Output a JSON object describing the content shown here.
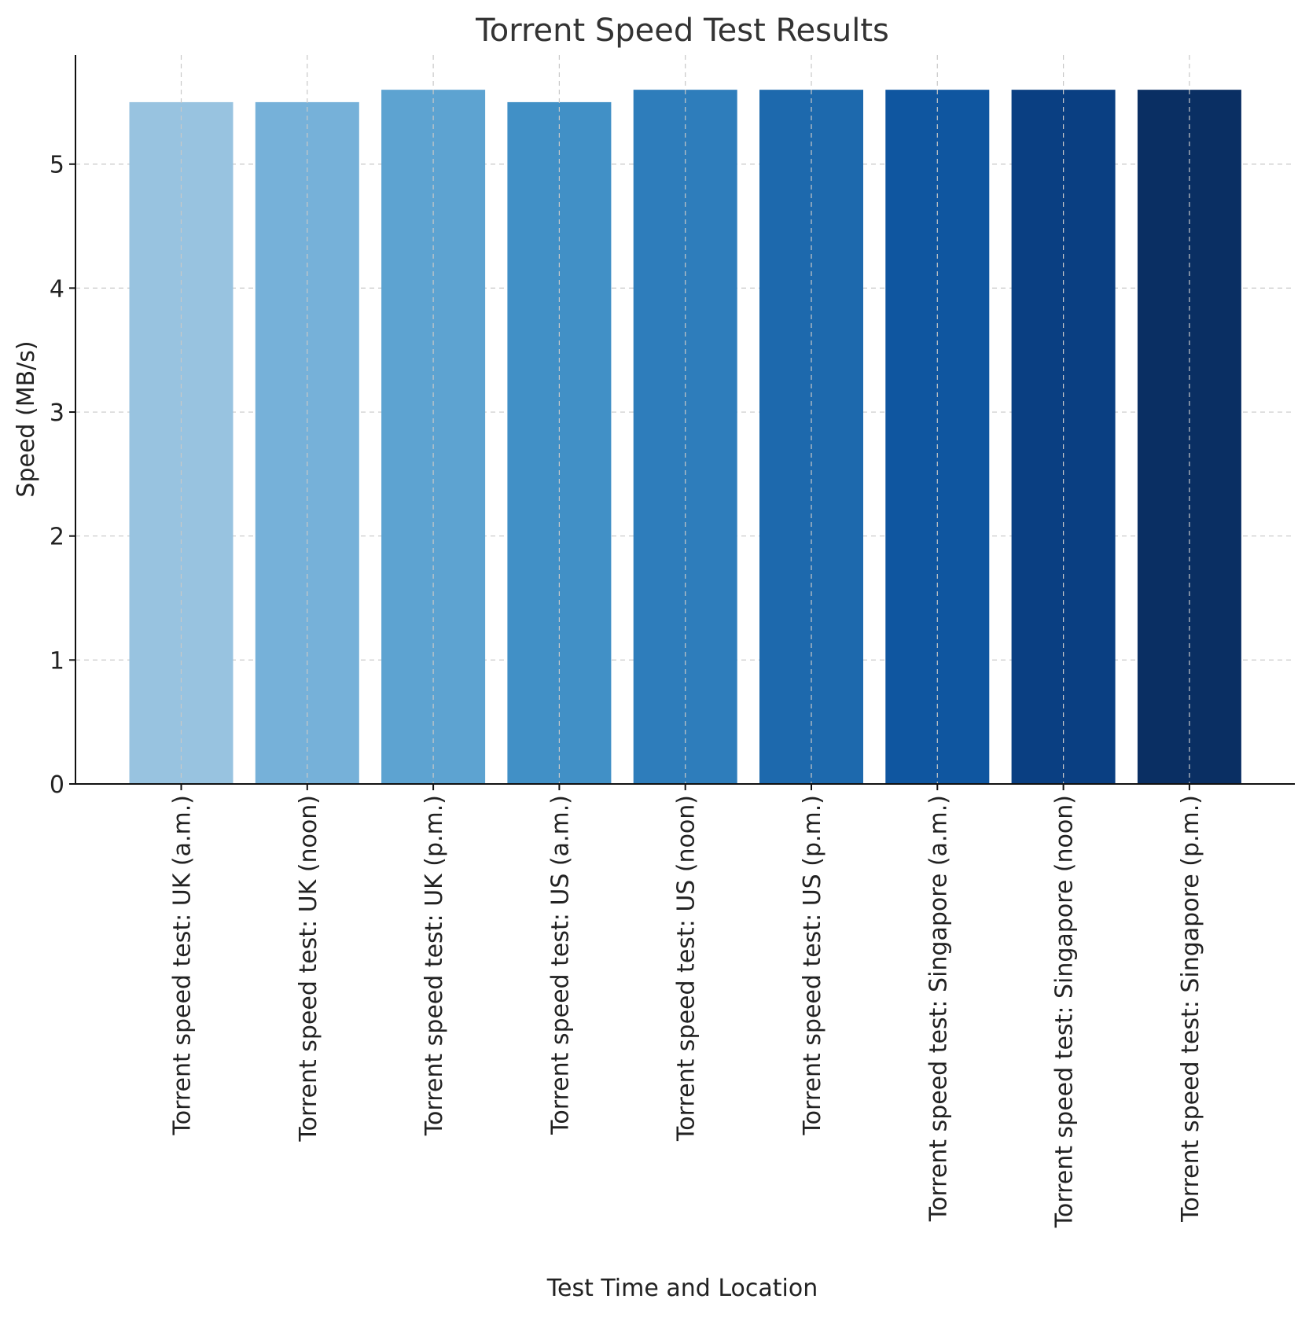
{
  "chart_data": {
    "type": "bar",
    "title": "Torrent Speed Test Results",
    "xlabel": "Test Time and Location",
    "ylabel": "Speed (MB/s)",
    "categories": [
      "Torrent speed test: UK (a.m.)",
      "Torrent speed test: UK (noon)",
      "Torrent speed test: UK (p.m.)",
      "Torrent speed test: US (a.m.)",
      "Torrent speed test: US (noon)",
      "Torrent speed test: US (p.m.)",
      "Torrent speed test: Singapore (a.m.)",
      "Torrent speed test: Singapore (noon)",
      "Torrent speed test: Singapore (p.m.)"
    ],
    "values": [
      5.5,
      5.5,
      5.6,
      5.5,
      5.6,
      5.6,
      5.6,
      5.6,
      5.6
    ],
    "colors": [
      "#98c3e0",
      "#76b1d9",
      "#5da3d1",
      "#4190c6",
      "#2e7dbb",
      "#1d69ad",
      "#0f56a0",
      "#0a3f82",
      "#0a2f63"
    ],
    "ylim": [
      0,
      5.88
    ],
    "yticks": [
      0,
      1,
      2,
      3,
      4,
      5
    ],
    "grid": true,
    "legend": "none"
  }
}
